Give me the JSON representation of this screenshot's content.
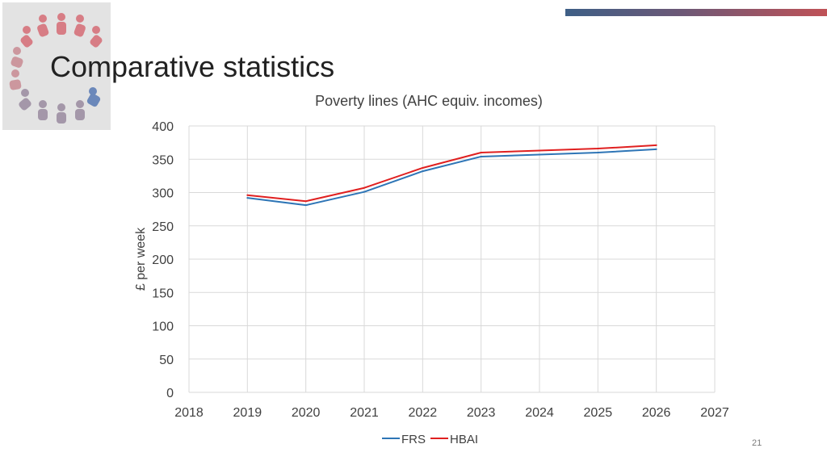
{
  "slide": {
    "title": "Comparative statistics",
    "number": "21"
  },
  "logo": {
    "icon": "people-circle-logo",
    "colors": [
      "#d65a63",
      "#4d6fa8",
      "#8a8a8a"
    ]
  },
  "chart_data": {
    "type": "line",
    "title": "Poverty lines (AHC equiv. incomes)",
    "xlabel": "",
    "ylabel": "£ per week",
    "xlim": [
      2018,
      2027
    ],
    "ylim": [
      0,
      400
    ],
    "x_ticks": [
      2018,
      2019,
      2020,
      2021,
      2022,
      2023,
      2024,
      2025,
      2026,
      2027
    ],
    "y_ticks": [
      0,
      50,
      100,
      150,
      200,
      250,
      300,
      350,
      400
    ],
    "grid": true,
    "legend_position": "bottom",
    "x": [
      2019,
      2020,
      2021,
      2022,
      2023,
      2024,
      2025,
      2026
    ],
    "series": [
      {
        "name": "FRS",
        "color": "#2e75b6",
        "values": [
          292,
          281,
          301,
          332,
          354,
          357,
          360,
          365
        ]
      },
      {
        "name": "HBAI",
        "color": "#e02020",
        "values": [
          296,
          287,
          307,
          337,
          360,
          363,
          366,
          371
        ]
      }
    ]
  }
}
